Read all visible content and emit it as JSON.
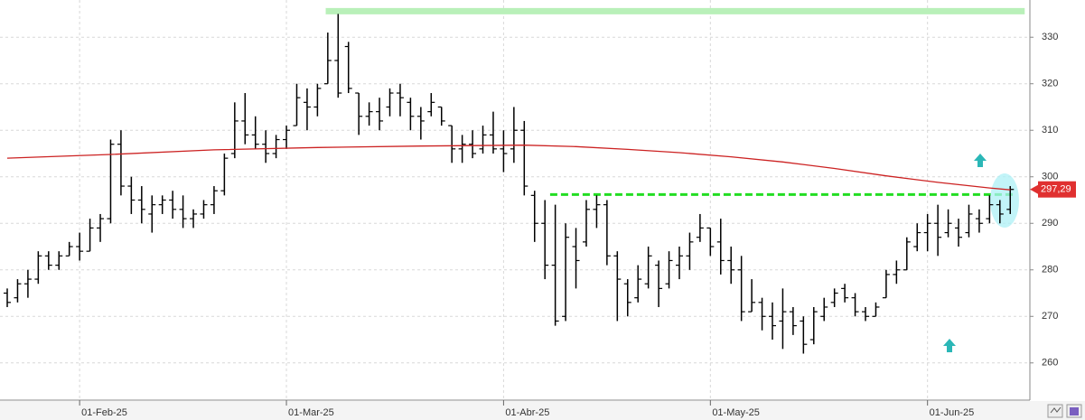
{
  "chart_data": {
    "type": "ohlc",
    "x": [
      0,
      1,
      2,
      3,
      4,
      5,
      6,
      7,
      8,
      9,
      10,
      11,
      12,
      13,
      14,
      15,
      16,
      17,
      18,
      19,
      20,
      21,
      22,
      23,
      24,
      25,
      26,
      27,
      28,
      29,
      30,
      31,
      32,
      33,
      34,
      35,
      36,
      37,
      38,
      39,
      40,
      41,
      42,
      43,
      44,
      45,
      46,
      47,
      48,
      49,
      50,
      51,
      52,
      53,
      54,
      55,
      56,
      57,
      58,
      59,
      60,
      61,
      62,
      63,
      64,
      65,
      66,
      67,
      68,
      69,
      70,
      71,
      72,
      73,
      74,
      75,
      76,
      77,
      78,
      79,
      80,
      81,
      82,
      83,
      84,
      85,
      86,
      87,
      88,
      89,
      90,
      91,
      92,
      93,
      94,
      95,
      96,
      97
    ],
    "color": "#000000",
    "open": [
      275,
      274,
      277,
      278,
      283,
      281,
      283,
      285,
      284,
      289,
      291,
      307,
      298,
      295,
      292,
      294,
      295,
      293,
      291,
      292,
      294,
      297,
      305,
      312,
      309,
      307,
      305,
      308,
      311,
      316,
      315,
      320,
      325,
      328,
      318,
      313,
      314,
      315,
      318,
      316,
      313,
      314,
      315,
      311,
      306,
      307,
      306,
      309,
      306,
      306,
      310,
      296,
      290,
      281,
      270,
      285,
      286,
      293,
      294,
      283,
      277,
      274,
      277,
      281,
      277,
      281,
      283,
      287,
      289,
      286,
      282,
      280,
      271,
      273,
      270,
      269,
      271,
      269,
      265,
      270,
      273,
      276,
      274,
      271,
      270,
      274,
      279,
      280,
      285,
      288,
      290,
      288,
      289,
      288,
      291,
      291,
      294,
      293
    ],
    "high": [
      276,
      278,
      280,
      284,
      284,
      284,
      286,
      288,
      291,
      292,
      308,
      310,
      300,
      298,
      296,
      296,
      297,
      296,
      293,
      295,
      298,
      305,
      316,
      318,
      313,
      310,
      309,
      311,
      320,
      319,
      320,
      331,
      335,
      329,
      318,
      316,
      317,
      319,
      320,
      317,
      315,
      318,
      315,
      311,
      309,
      310,
      311,
      314,
      310,
      315,
      312,
      297,
      295,
      294,
      290,
      289,
      295,
      296,
      295,
      284,
      278,
      281,
      285,
      282,
      284,
      285,
      288,
      292,
      289,
      291,
      285,
      283,
      278,
      274,
      273,
      276,
      272,
      270,
      272,
      274,
      276,
      277,
      275,
      272,
      273,
      280,
      282,
      287,
      290,
      292,
      294,
      293,
      291,
      294,
      293,
      296,
      295,
      298
    ],
    "low": [
      272,
      273,
      274,
      277,
      280,
      280,
      283,
      282,
      284,
      286,
      290,
      296,
      292,
      290,
      288,
      292,
      291,
      289,
      289,
      291,
      292,
      296,
      304,
      307,
      306,
      303,
      304,
      306,
      311,
      310,
      313,
      320,
      317,
      318,
      309,
      311,
      310,
      313,
      313,
      310,
      308,
      313,
      311,
      303,
      303,
      304,
      305,
      305,
      301,
      303,
      296,
      286,
      278,
      268,
      269,
      276,
      285,
      289,
      281,
      269,
      270,
      273,
      276,
      272,
      276,
      278,
      280,
      286,
      283,
      279,
      277,
      269,
      271,
      267,
      265,
      263,
      266,
      262,
      264,
      269,
      272,
      273,
      270,
      269,
      270,
      274,
      277,
      280,
      284,
      284,
      283,
      287,
      285,
      287,
      288,
      290,
      290,
      292
    ],
    "close": [
      273,
      277,
      278,
      283,
      281,
      283,
      285,
      284,
      289,
      291,
      307,
      298,
      295,
      293,
      294,
      295,
      293,
      291,
      292,
      294,
      297,
      304,
      312,
      309,
      307,
      305,
      308,
      310,
      317,
      315,
      319,
      325,
      318,
      319,
      313,
      314,
      312,
      318,
      317,
      313,
      312,
      316,
      312,
      306,
      307,
      305,
      309,
      306,
      305,
      310,
      298,
      290,
      281,
      269,
      287,
      282,
      293,
      294,
      283,
      278,
      273,
      278,
      283,
      276,
      282,
      283,
      286,
      289,
      285,
      282,
      280,
      271,
      273,
      270,
      268,
      271,
      268,
      264,
      271,
      272,
      275,
      274,
      271,
      270,
      272,
      279,
      280,
      286,
      288,
      290,
      287,
      290,
      287,
      292,
      290,
      294,
      292,
      297.29
    ],
    "ma": {
      "color": "#cc2222",
      "x": [
        0,
        10,
        20,
        30,
        40,
        50,
        55,
        60,
        65,
        70,
        75,
        80,
        85,
        90,
        95,
        97
      ],
      "values": [
        304.0,
        304.8,
        305.8,
        306.3,
        306.6,
        306.8,
        306.5,
        305.9,
        305.2,
        304.3,
        303.2,
        301.8,
        300.2,
        298.8,
        297.6,
        297.2
      ]
    },
    "hlines": [
      {
        "value": 335.6,
        "from": 30.8,
        "to": 98.4,
        "color": "#b9f0b9",
        "style": "band"
      },
      {
        "value": 296.2,
        "from": 52.5,
        "to": 97.4,
        "color": "#22dd22",
        "style": "dashed"
      }
    ],
    "last_label": {
      "value": 297.29,
      "label": "297,29",
      "color": "#e03030"
    },
    "xlim": [
      -0.7,
      98.9
    ],
    "ylim": [
      252,
      338
    ],
    "yticks": [
      260,
      270,
      280,
      290,
      300,
      310,
      320,
      330
    ],
    "xticks": [
      {
        "value": 7,
        "label": "01-Feb-25"
      },
      {
        "value": 27,
        "label": "01-Mar-25"
      },
      {
        "value": 48,
        "label": "01-Abr-25"
      },
      {
        "value": 68,
        "label": "01-May-25"
      },
      {
        "value": 89,
        "label": "01-Jun-25"
      }
    ],
    "grid": true
  }
}
